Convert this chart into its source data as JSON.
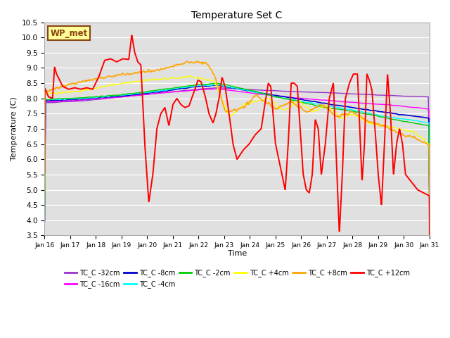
{
  "title": "Temperature Set C",
  "xlabel": "Time",
  "ylabel": "Temperature (C)",
  "ylim": [
    3.5,
    10.5
  ],
  "yticks": [
    3.5,
    4.0,
    4.5,
    5.0,
    5.5,
    6.0,
    6.5,
    7.0,
    7.5,
    8.0,
    8.5,
    9.0,
    9.5,
    10.0,
    10.5
  ],
  "xtick_labels": [
    "Jan 16",
    "Jan 17",
    "Jan 18",
    "Jan 19",
    "Jan 20",
    "Jan 21",
    "Jan 22",
    "Jan 23",
    "Jan 24",
    "Jan 25",
    "Jan 26",
    "Jan 27",
    "Jan 28",
    "Jan 29",
    "Jan 30",
    "Jan 31"
  ],
  "annotation_text": "WP_met",
  "annotation_color": "#8B4513",
  "annotation_bg": "#FFFF99",
  "annotation_border": "#8B4513",
  "bg_color": "#E0E0E0",
  "series_colors": {
    "TC_C -32cm": "#9932CC",
    "TC_C -16cm": "#FF00FF",
    "TC_C -8cm": "#0000CD",
    "TC_C -4cm": "#00FFFF",
    "TC_C -2cm": "#00CC00",
    "TC_C +4cm": "#FFFF00",
    "TC_C +8cm": "#FFA500",
    "TC_C +12cm": "#FF0000"
  },
  "legend_order": [
    "TC_C -32cm",
    "TC_C -16cm",
    "TC_C -8cm",
    "TC_C -4cm",
    "TC_C -2cm",
    "TC_C +4cm",
    "TC_C +8cm",
    "TC_C +12cm"
  ]
}
